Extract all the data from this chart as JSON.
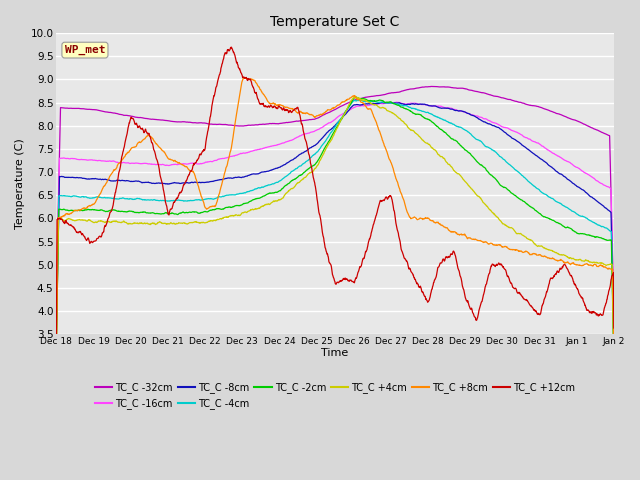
{
  "title": "Temperature Set C",
  "xlabel": "Time",
  "ylabel": "Temperature (C)",
  "ylim": [
    3.5,
    10.0
  ],
  "yticks": [
    3.5,
    4.0,
    4.5,
    5.0,
    5.5,
    6.0,
    6.5,
    7.0,
    7.5,
    8.0,
    8.5,
    9.0,
    9.5,
    10.0
  ],
  "fig_bg_color": "#d8d8d8",
  "plot_bg_color": "#e8e8e8",
  "annotation_text": "WP_met",
  "annotation_color": "#8b0000",
  "annotation_bg": "#ffffc0",
  "series": [
    {
      "label": "TC_C -32cm",
      "color": "#bb00bb"
    },
    {
      "label": "TC_C -16cm",
      "color": "#ff44ff"
    },
    {
      "label": "TC_C -8cm",
      "color": "#1111bb"
    },
    {
      "label": "TC_C -4cm",
      "color": "#00cccc"
    },
    {
      "label": "TC_C -2cm",
      "color": "#00cc00"
    },
    {
      "label": "TC_C +4cm",
      "color": "#cccc00"
    },
    {
      "label": "TC_C +8cm",
      "color": "#ff8800"
    },
    {
      "label": "TC_C +12cm",
      "color": "#cc0000"
    }
  ],
  "xtick_labels": [
    "Dec 18",
    "Dec 19",
    "Dec 20",
    "Dec 21",
    "Dec 22",
    "Dec 23",
    "Dec 24",
    "Dec 25",
    "Dec 26",
    "Dec 27",
    "Dec 28",
    "Dec 29",
    "Dec 30",
    "Dec 31",
    "Jan 1",
    "Jan 2"
  ],
  "n_points": 1600
}
